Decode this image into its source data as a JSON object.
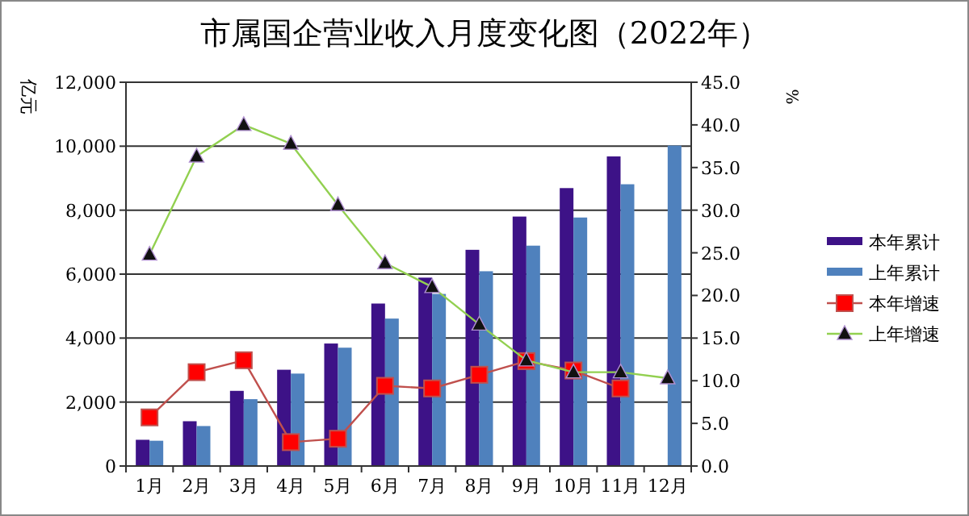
{
  "chart_data": {
    "type": "bar",
    "title": "市属国企营业收入月度变化图（2022年）",
    "ylabel": "亿元",
    "y2label": "%",
    "categories": [
      "1月",
      "2月",
      "3月",
      "4月",
      "5月",
      "6月",
      "7月",
      "8月",
      "9月",
      "10月",
      "11月",
      "12月"
    ],
    "series": [
      {
        "name": "本年累计",
        "color": "#3d1287",
        "values": [
          820,
          1400,
          2350,
          3010,
          3830,
          5080,
          5890,
          6760,
          7800,
          8690,
          9680,
          null
        ]
      },
      {
        "name": "上年累计",
        "color": "#4f81bd",
        "values": [
          790,
          1250,
          2090,
          2890,
          3700,
          4610,
          5380,
          6090,
          6890,
          7770,
          8810,
          10020
        ]
      },
      {
        "name": "本年增速",
        "type": "line",
        "axis": "y2",
        "color": "#c0504d",
        "marker": "square",
        "values": [
          5.7,
          11.0,
          12.4,
          2.8,
          3.2,
          9.4,
          9.1,
          10.7,
          12.3,
          11.2,
          9.1,
          null
        ]
      },
      {
        "name": "上年增速",
        "type": "line",
        "axis": "y2",
        "color": "#92d050",
        "marker": "triangle",
        "values": [
          24.8,
          36.3,
          40.0,
          37.8,
          30.6,
          23.8,
          21.0,
          16.6,
          12.4,
          11.0,
          11.0,
          10.3
        ]
      }
    ],
    "ylim": [
      0,
      12000
    ],
    "yticks": [
      {
        "value": 0,
        "label": "0"
      },
      {
        "value": 2000,
        "label": "2,000"
      },
      {
        "value": 4000,
        "label": "4,000"
      },
      {
        "value": 6000,
        "label": "6,000"
      },
      {
        "value": 8000,
        "label": "8,000"
      },
      {
        "value": 10000,
        "label": "10,000"
      },
      {
        "value": 12000,
        "label": "12,000"
      }
    ],
    "y2lim": [
      0,
      45
    ],
    "y2ticks": [
      {
        "value": 0,
        "label": "0.0"
      },
      {
        "value": 5,
        "label": "5.0"
      },
      {
        "value": 10,
        "label": "10.0"
      },
      {
        "value": 15,
        "label": "15.0"
      },
      {
        "value": 20,
        "label": "20.0"
      },
      {
        "value": 25,
        "label": "25.0"
      },
      {
        "value": 30,
        "label": "30.0"
      },
      {
        "value": 35,
        "label": "35.0"
      },
      {
        "value": 40,
        "label": "40.0"
      },
      {
        "value": 45,
        "label": "45.0"
      }
    ],
    "grid": "y",
    "legend": "right"
  }
}
